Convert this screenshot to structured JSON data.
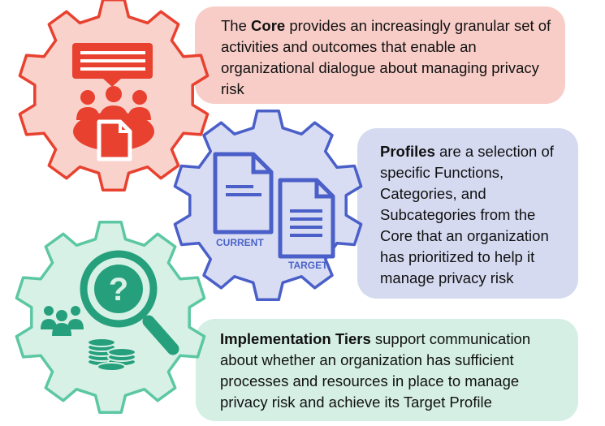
{
  "core": {
    "bold": "Core",
    "pre": "The ",
    "text": " provides an increasingly granular set of activities and outcomes that enable an organizational dialogue about managing privacy risk"
  },
  "profiles": {
    "bold": "Profiles",
    "text": " are a selection of specific Functions, Categories, and Subcategories from the Core that an organization has prioritized to help it manage privacy risk",
    "label_current": "CURRENT",
    "label_target": "TARGET"
  },
  "tiers": {
    "bold": "Implementation Tiers",
    "text": " support communication about whether an organization has sufficient processes and resources in place to manage privacy risk and achieve its Target Profile"
  },
  "colors": {
    "core_gear_fill": "#f9d2cc",
    "core_gear_stroke": "#e8412f",
    "core_accent": "#e8412f",
    "profiles_gear_fill": "#d9ddf4",
    "profiles_gear_stroke": "#4a5fc8",
    "tiers_gear_fill": "#d7f1e6",
    "tiers_gear_stroke": "#5cc7a3",
    "tiers_accent": "#26a07c"
  },
  "icons": [
    "chat-bubble-icon",
    "team-meeting-icon",
    "document-icon",
    "current-document-icon",
    "target-document-icon",
    "question-magnifier-icon",
    "people-group-icon",
    "coin-stack-icon"
  ]
}
